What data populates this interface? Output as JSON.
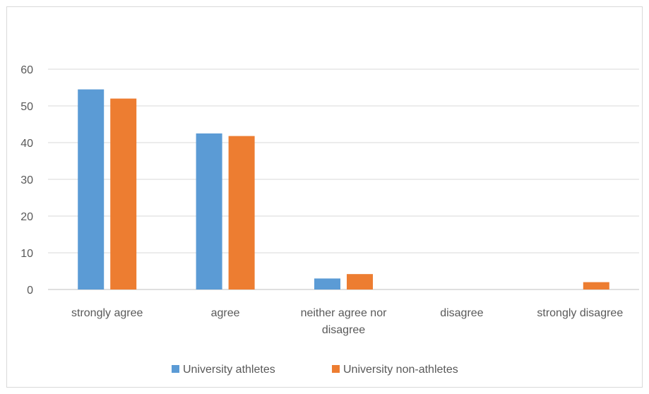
{
  "chart_data": {
    "type": "bar",
    "categories": [
      [
        "strongly agree"
      ],
      [
        "agree"
      ],
      [
        "neither agree nor",
        "disagree"
      ],
      [
        "disagree"
      ],
      [
        "strongly disagree"
      ]
    ],
    "series": [
      {
        "name": "University athletes",
        "color": "#5b9bd5",
        "values": [
          54.5,
          42.5,
          3,
          0,
          0
        ]
      },
      {
        "name": "University non-athletes",
        "color": "#ed7d31",
        "values": [
          52,
          41.8,
          4.2,
          0,
          2
        ]
      }
    ],
    "title": "",
    "xlabel": "",
    "ylabel": "",
    "ylim": [
      0,
      60
    ],
    "yticks": [
      "0",
      "10",
      "20",
      "30",
      "40",
      "50",
      "60"
    ],
    "grid": true,
    "legend": "bottom"
  }
}
